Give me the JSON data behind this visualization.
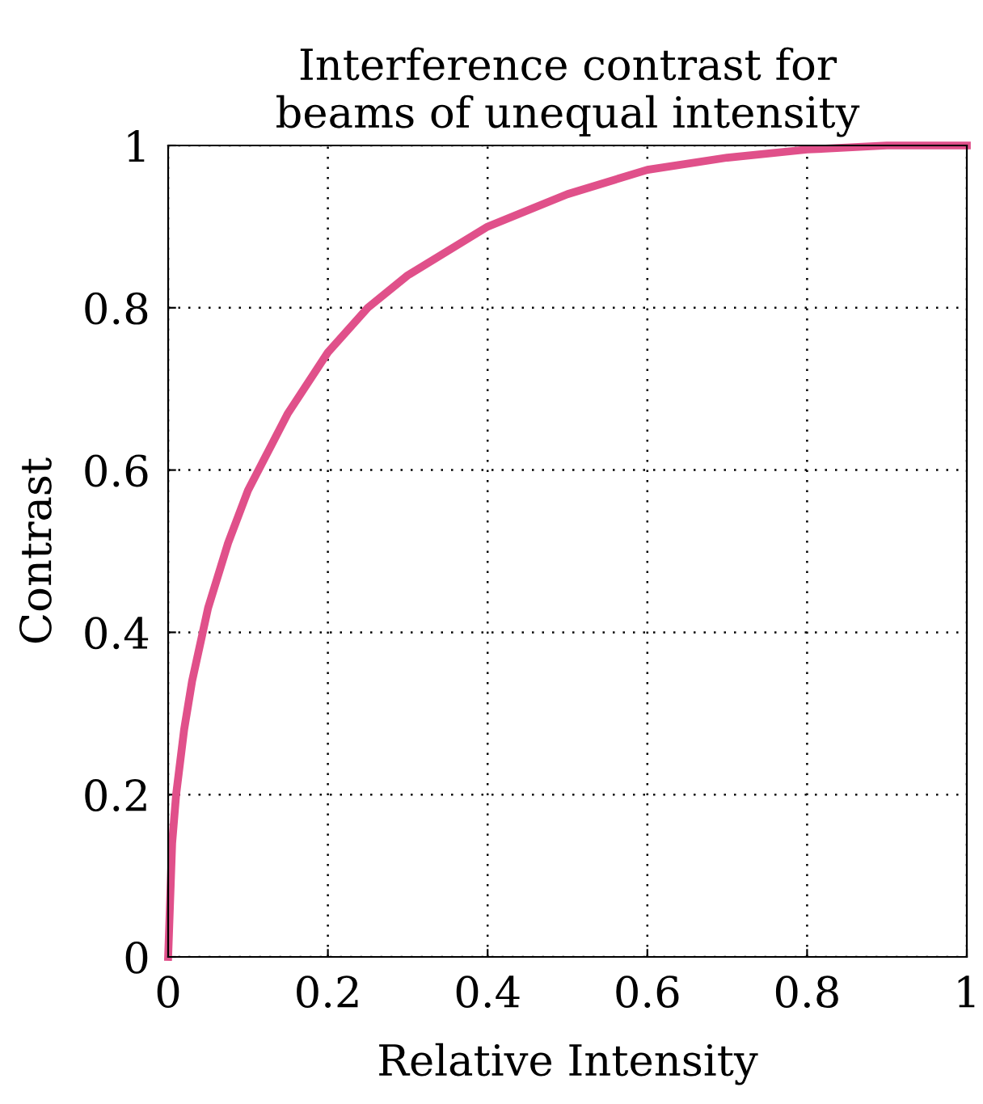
{
  "chart_data": {
    "type": "line",
    "title": "Interference contrast for\nbeams of unequal intensity",
    "xlabel": "Relative Intensity",
    "ylabel": "Contrast",
    "x": [
      0,
      0.005,
      0.01,
      0.02,
      0.03,
      0.05,
      0.075,
      0.1,
      0.15,
      0.2,
      0.25,
      0.3,
      0.4,
      0.5,
      0.6,
      0.7,
      0.8,
      0.9,
      1
    ],
    "series": [
      {
        "color": "#e0508a",
        "values": [
          0,
          0.14,
          0.2,
          0.28,
          0.34,
          0.43,
          0.51,
          0.575,
          0.67,
          0.745,
          0.8,
          0.84,
          0.9,
          0.94,
          0.97,
          0.985,
          0.995,
          1.0,
          1.0
        ]
      }
    ],
    "xlim": [
      0,
      1
    ],
    "ylim": [
      0,
      1
    ],
    "xticks": [
      0,
      0.2,
      0.4,
      0.6,
      0.8,
      1
    ],
    "yticks": [
      0,
      0.2,
      0.4,
      0.6,
      0.8,
      1
    ],
    "grid": true,
    "line_style": "solid",
    "marker": "none"
  }
}
